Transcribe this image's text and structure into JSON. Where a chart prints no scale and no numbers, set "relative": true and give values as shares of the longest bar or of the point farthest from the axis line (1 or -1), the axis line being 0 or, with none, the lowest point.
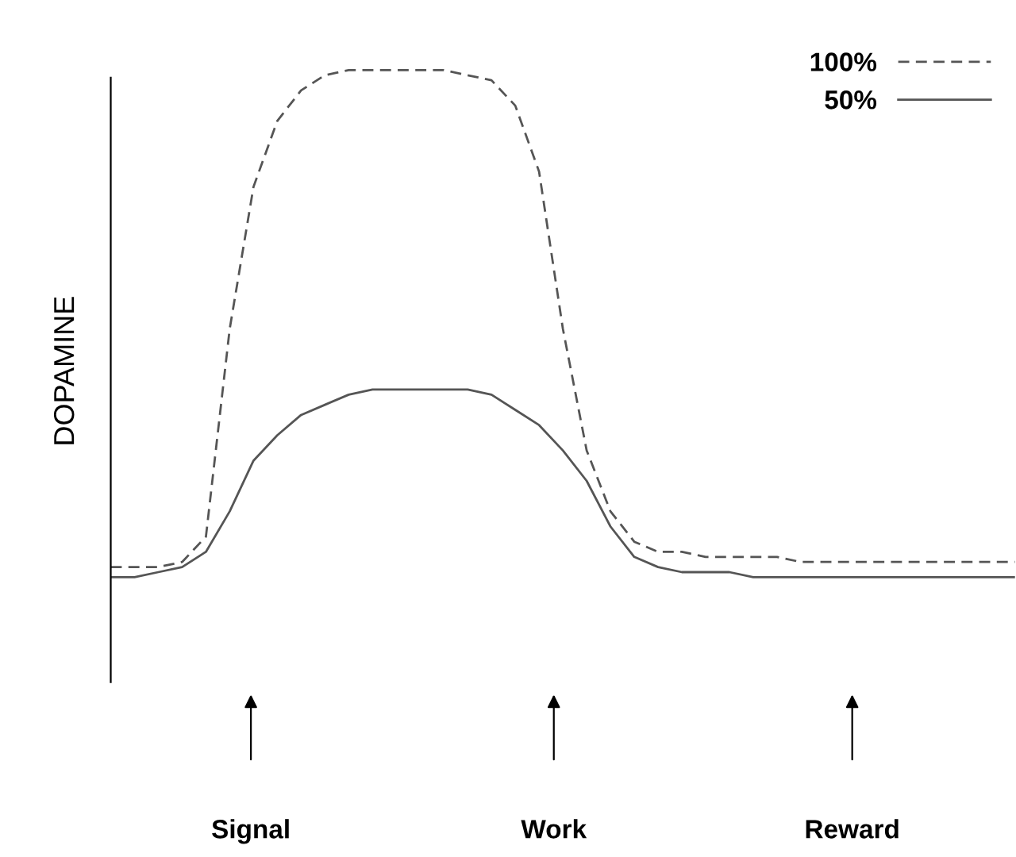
{
  "chart_data": {
    "type": "line",
    "relative": true,
    "ylabel": "DOPAMINE",
    "categories": [
      null,
      null,
      null,
      null,
      null,
      null,
      null,
      null,
      null,
      null,
      null,
      null,
      null,
      null,
      null,
      null,
      null,
      null,
      null,
      null,
      null,
      null,
      null,
      null,
      null,
      null,
      null,
      null,
      null,
      null,
      null,
      null,
      null,
      null,
      null,
      null,
      null,
      null,
      null
    ],
    "series": [
      {
        "name": "100%",
        "color": "#555555",
        "line_style": "dashed",
        "values": [
          0.02,
          0.02,
          0.02,
          0.03,
          0.08,
          0.49,
          0.77,
          0.9,
          0.96,
          0.99,
          1.0,
          1.0,
          1.0,
          1.0,
          1.0,
          0.99,
          0.98,
          0.93,
          0.8,
          0.49,
          0.25,
          0.13,
          0.07,
          0.05,
          0.05,
          0.04,
          0.04,
          0.04,
          0.04,
          0.03,
          0.03,
          0.03,
          0.03,
          0.03,
          0.03,
          0.03,
          0.03,
          0.03,
          0.03
        ]
      },
      {
        "name": "50%",
        "color": "#555555",
        "line_style": "solid",
        "values": [
          0.0,
          0.0,
          0.01,
          0.02,
          0.05,
          0.13,
          0.23,
          0.28,
          0.32,
          0.34,
          0.36,
          0.37,
          0.37,
          0.37,
          0.37,
          0.37,
          0.36,
          0.33,
          0.3,
          0.25,
          0.19,
          0.1,
          0.04,
          0.02,
          0.01,
          0.01,
          0.01,
          0.0,
          0.0,
          0.0,
          0.0,
          0.0,
          0.0,
          0.0,
          0.0,
          0.0,
          0.0,
          0.0,
          0.0
        ]
      }
    ],
    "legend": "top right",
    "grid": false,
    "annotations": [
      "Signal",
      "Work",
      "Reward"
    ]
  }
}
